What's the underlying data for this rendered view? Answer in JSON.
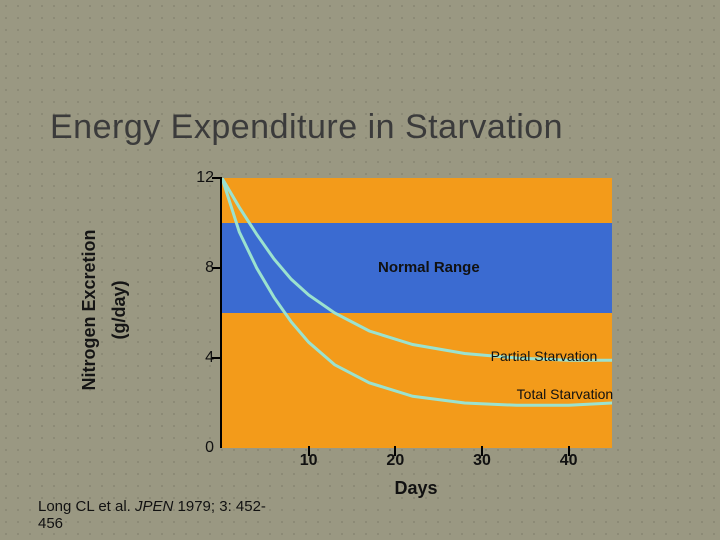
{
  "title": "Energy Expenditure in Starvation",
  "chart": {
    "type": "line",
    "background_color": "#f39b1a",
    "normal_band_color": "#3b6bd1",
    "line_color": "#9be2cf",
    "line_width": 3,
    "axis_color": "#000000",
    "ylabel_line1": "Nitrogen Excretion",
    "ylabel_line2": "(g/day)",
    "xlabel": "Days",
    "ylim": [
      0,
      12
    ],
    "yticks": [
      0,
      4,
      8,
      12
    ],
    "xlim": [
      0,
      45
    ],
    "xticks": [
      10,
      20,
      30,
      40
    ],
    "normal_band": {
      "ymin": 6,
      "ymax": 10,
      "label": "Normal Range"
    },
    "series": [
      {
        "name": "Partial Starvation",
        "label_xy": [
          31,
          4.1
        ],
        "points": [
          [
            0,
            12
          ],
          [
            2,
            10.7
          ],
          [
            4,
            9.5
          ],
          [
            6,
            8.4
          ],
          [
            8,
            7.5
          ],
          [
            10,
            6.8
          ],
          [
            13,
            6.0
          ],
          [
            17,
            5.2
          ],
          [
            22,
            4.6
          ],
          [
            28,
            4.2
          ],
          [
            34,
            4.0
          ],
          [
            40,
            3.9
          ],
          [
            45,
            3.9
          ]
        ]
      },
      {
        "name": "Total Starvation",
        "label_xy": [
          34,
          2.4
        ],
        "points": [
          [
            0,
            12
          ],
          [
            2,
            9.6
          ],
          [
            4,
            8.0
          ],
          [
            6,
            6.7
          ],
          [
            8,
            5.6
          ],
          [
            10,
            4.7
          ],
          [
            13,
            3.7
          ],
          [
            17,
            2.9
          ],
          [
            22,
            2.3
          ],
          [
            28,
            2.0
          ],
          [
            34,
            1.9
          ],
          [
            40,
            1.9
          ],
          [
            45,
            2.0
          ]
        ]
      }
    ]
  },
  "citation": {
    "prefix": "Long CL et al. ",
    "journal": "JPEN",
    "suffix": " 1979; 3: 452-",
    "line2": "456"
  }
}
